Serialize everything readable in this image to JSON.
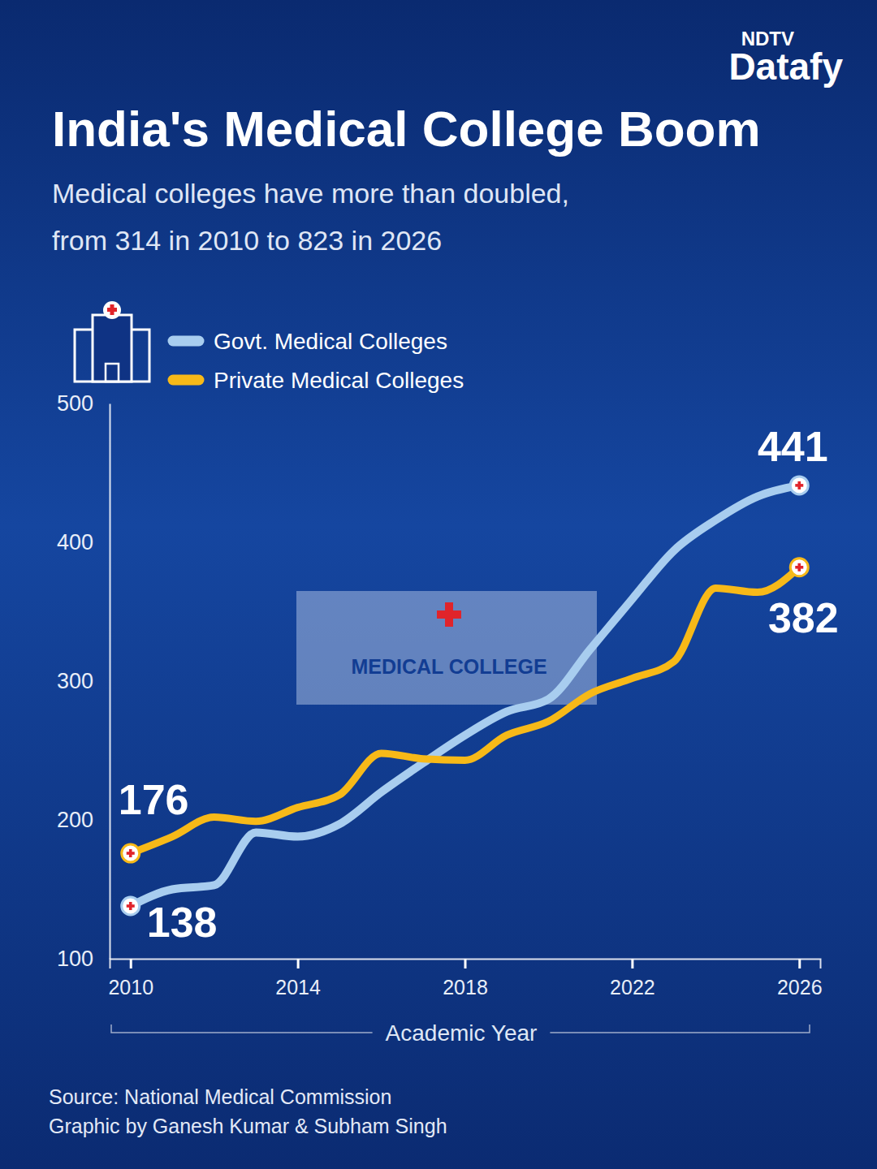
{
  "chart_data": {
    "type": "line",
    "title": "India's Medical College Boom",
    "subtitle": "Medical colleges have more than doubled,\nfrom 314 in 2010 to 823 in 2026",
    "brand": [
      "NDTV",
      "Datafy"
    ],
    "x": [
      2010,
      2011,
      2012,
      2013,
      2014,
      2015,
      2016,
      2017,
      2018,
      2019,
      2020,
      2021,
      2022,
      2023,
      2024,
      2025,
      2026
    ],
    "x_label": "Academic Year",
    "series": [
      {
        "name": "Govt. Medical Colleges",
        "color": "#a8cdef",
        "values": [
          138,
          150,
          153,
          191,
          188,
          197,
          220,
          241,
          261,
          278,
          287,
          323,
          359,
          394,
          416,
          433,
          441
        ]
      },
      {
        "name": "Private Medical Colleges",
        "color": "#f7b918",
        "values": [
          176,
          188,
          202,
          199,
          209,
          218,
          248,
          244,
          243,
          261,
          271,
          291,
          302,
          314,
          367,
          364,
          382
        ]
      }
    ],
    "xlim": [
      2009.5,
      2026.5
    ],
    "xticks": [
      2010,
      2014,
      2018,
      2022,
      2026
    ],
    "ylim": [
      100,
      500
    ],
    "yticks": [
      100,
      200,
      300,
      400,
      500
    ],
    "grid": false,
    "legend": "top-left",
    "data_labels": true,
    "marker": "circle",
    "annotations": [
      "MEDICAL COLLEGE"
    ],
    "source": "Source: National Medical Commission",
    "credit": "Graphic by Ganesh Kumar & Subham Singh"
  }
}
